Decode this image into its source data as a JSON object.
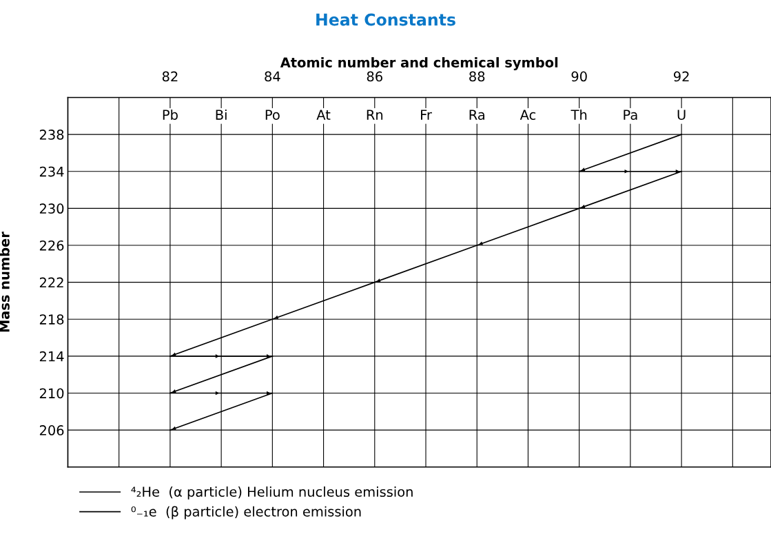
{
  "chart_data": {
    "type": "line",
    "title": "Heat Constants",
    "xlabel": "Atomic number and chemical symbol",
    "ylabel": "Mass number",
    "xlim": [
      80,
      93.75
    ],
    "xticks": [
      {
        "value": 81,
        "label": null
      },
      82,
      {
        "value": 83,
        "label": null
      },
      84,
      {
        "value": 85,
        "label": null
      },
      86,
      {
        "value": 87,
        "label": null
      },
      88,
      {
        "value": 89,
        "label": null
      },
      90,
      {
        "value": 91,
        "label": null
      },
      92,
      {
        "value": 93,
        "label": null
      }
    ],
    "ylim": [
      202,
      242
    ],
    "yticks": [
      206,
      210,
      214,
      218,
      222,
      226,
      230,
      234,
      238
    ],
    "annotations": [
      {
        "text": "Pb",
        "x": 82,
        "y": 240
      },
      {
        "text": "Bi",
        "x": 83,
        "y": 240
      },
      {
        "text": "Po",
        "x": 84,
        "y": 240
      },
      {
        "text": "At",
        "x": 85,
        "y": 240
      },
      {
        "text": "Rn",
        "x": 86,
        "y": 240
      },
      {
        "text": "Fr",
        "x": 87,
        "y": 240
      },
      {
        "text": "Ra",
        "x": 88,
        "y": 240
      },
      {
        "text": "Ac",
        "x": 89,
        "y": 240
      },
      {
        "text": "Th",
        "x": 90,
        "y": 240
      },
      {
        "text": "Pa",
        "x": 91,
        "y": 240
      },
      {
        "text": "U",
        "x": 92,
        "y": 240
      }
    ],
    "grid": true,
    "legend": "bottom left",
    "marker": "none",
    "line_style": "solid",
    "series": [
      {
        "name": "⁴₂He  (α particle) Helium nucleus emission",
        "color": "#000000",
        "x": [
          92,
          90
        ],
        "values": [
          238,
          234
        ]
      },
      {
        "color": "#000000",
        "x": [
          92,
          90,
          88,
          86,
          84,
          82
        ],
        "values": [
          234,
          230,
          226,
          222,
          218,
          214
        ]
      },
      {
        "color": "#000000",
        "x": [
          84,
          82
        ],
        "values": [
          214,
          210
        ]
      },
      {
        "color": "#000000",
        "x": [
          84,
          82
        ],
        "values": [
          210,
          206
        ]
      },
      {
        "name": "⁰₋₁e  (β particle) electron emission",
        "color": "#000000",
        "x": [
          90,
          91,
          92
        ],
        "values": [
          234,
          234,
          234
        ]
      },
      {
        "color": "#000000",
        "x": [
          82,
          83,
          84
        ],
        "values": [
          214,
          214,
          214
        ]
      },
      {
        "color": "#000000",
        "x": [
          82,
          83,
          84
        ],
        "values": [
          210,
          210,
          210
        ]
      }
    ]
  }
}
